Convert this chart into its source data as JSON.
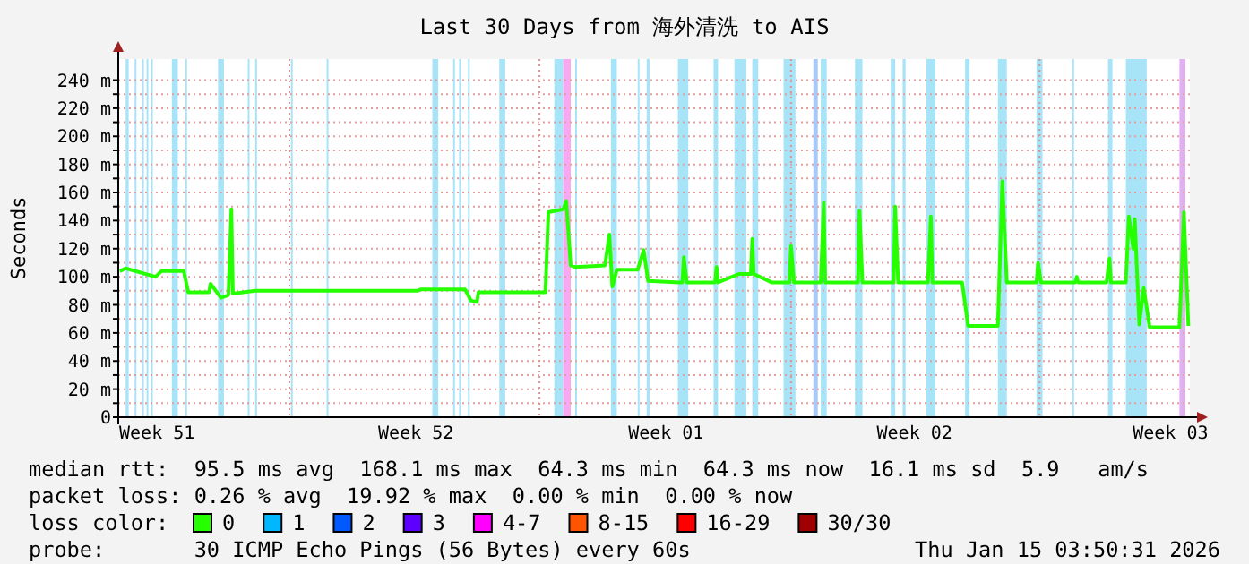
{
  "chart_data": {
    "type": "line",
    "title": "Last 30 Days from 海外清洗 to AIS",
    "ylabel": "Seconds",
    "legend_title": "loss color:",
    "legend": "bottom",
    "grid": "y",
    "xlim": [
      "2025-12-16T04:00",
      "2026-01-15T04:00"
    ],
    "xticks": [
      {
        "value": "2025-12-17T06:00",
        "label": "Week 51"
      },
      {
        "value": "2025-12-24T12:00",
        "label": "Week 52"
      },
      {
        "value": "2025-12-31T12:00",
        "label": "Week 01"
      },
      {
        "value": "2026-01-07T11:00",
        "label": "Week 02"
      },
      {
        "value": "2026-01-14T15:00",
        "label": "Week 03"
      }
    ],
    "ylim": [
      0,
      255
    ],
    "yticks": [
      0,
      {
        "value": 10,
        "label": null
      },
      {
        "value": 20,
        "label": "20 m"
      },
      {
        "value": 30,
        "label": null
      },
      {
        "value": 40,
        "label": "40 m"
      },
      {
        "value": 50,
        "label": null
      },
      {
        "value": 60,
        "label": "60 m"
      },
      {
        "value": 70,
        "label": null
      },
      {
        "value": 80,
        "label": "80 m"
      },
      {
        "value": 90,
        "label": null
      },
      {
        "value": 100,
        "label": "100 m"
      },
      {
        "value": 110,
        "label": null
      },
      {
        "value": 120,
        "label": "120 m"
      },
      {
        "value": 130,
        "label": null
      },
      {
        "value": 140,
        "label": "140 m"
      },
      {
        "value": 150,
        "label": null
      },
      {
        "value": 160,
        "label": "160 m"
      },
      {
        "value": 170,
        "label": null
      },
      {
        "value": 180,
        "label": "180 m"
      },
      {
        "value": 190,
        "label": null
      },
      {
        "value": 200,
        "label": "200 m"
      },
      {
        "value": 210,
        "label": null
      },
      {
        "value": 220,
        "label": "220 m"
      },
      {
        "value": 230,
        "label": null
      },
      {
        "value": 240,
        "label": "240 m"
      }
    ],
    "series": [
      {
        "name": "0",
        "color": "#26ff00",
        "x": [
          "2025-12-16T05:00",
          "2025-12-16T09:00",
          "2025-12-17T05:00",
          "2025-12-17T09:00",
          "2025-12-18T00:00",
          "2025-12-18T03:00",
          "2025-12-18T17:00",
          "2025-12-18T18:00",
          "2025-12-19T01:00",
          "2025-12-19T06:00",
          "2025-12-19T08:00",
          "2025-12-19T09:00",
          "2025-12-20T00:00",
          "2025-12-24T13:00",
          "2025-12-24T15:00",
          "2025-12-25T21:00",
          "2025-12-26T01:00",
          "2025-12-26T05:00",
          "2025-12-26T06:00",
          "2025-12-28T03:00",
          "2025-12-28T05:00",
          "2025-12-28T15:00",
          "2025-12-28T17:00",
          "2025-12-28T20:00",
          "2025-12-28T23:00",
          "2025-12-29T19:00",
          "2025-12-29T22:00",
          "2025-12-30T00:00",
          "2025-12-30T03:00",
          "2025-12-30T17:00",
          "2025-12-30T21:00",
          "2025-12-31T00:00",
          "2025-12-31T21:00",
          "2025-12-31T23:00",
          "2026-01-01T00:00",
          "2026-01-01T02:00",
          "2026-01-01T21:00",
          "2026-01-01T22:00",
          "2026-01-01T23:00",
          "2026-01-02T13:00",
          "2026-01-02T21:00",
          "2026-01-02T22:00",
          "2026-01-02T23:00",
          "2026-01-03T11:00",
          "2026-01-03T23:00",
          "2026-01-04T00:00",
          "2026-01-04T02:00",
          "2026-01-04T20:00",
          "2026-01-04T22:00",
          "2026-01-04T23:00",
          "2026-01-05T21:00",
          "2026-01-05T22:00",
          "2026-01-06T00:00",
          "2026-01-06T21:00",
          "2026-01-06T22:00",
          "2026-01-07T00:00",
          "2026-01-07T20:00",
          "2026-01-07T22:00",
          "2026-01-07T23:00",
          "2026-01-08T19:00",
          "2026-01-08T23:00",
          "2026-01-09T19:00",
          "2026-01-09T22:00",
          "2026-01-10T01:00",
          "2026-01-10T21:00",
          "2026-01-10T22:00",
          "2026-01-11T00:00",
          "2026-01-11T23:00",
          "2026-01-12T00:00",
          "2026-01-12T01:00",
          "2026-01-12T20:00",
          "2026-01-12T22:00",
          "2026-01-12T23:00",
          "2026-01-13T09:00",
          "2026-01-13T11:00",
          "2026-01-13T14:00",
          "2026-01-13T15:00",
          "2026-01-13T18:00",
          "2026-01-13T21:00",
          "2026-01-14T01:00",
          "2026-01-14T21:00",
          "2026-01-15T00:00",
          "2026-01-15T03:00"
        ],
        "values": [
          104,
          106,
          100,
          104,
          104,
          89,
          89,
          95,
          85,
          87,
          148,
          88,
          90,
          90,
          91,
          91,
          83,
          82,
          89,
          89,
          146,
          148,
          154,
          108,
          107,
          108,
          130,
          93,
          105,
          105,
          119,
          97,
          96,
          96,
          114,
          96,
          96,
          107,
          96,
          102,
          102,
          127,
          102,
          96,
          96,
          122,
          96,
          96,
          153,
          96,
          96,
          147,
          96,
          96,
          150,
          96,
          96,
          143,
          96,
          96,
          65,
          65,
          168,
          96,
          96,
          110,
          96,
          96,
          100,
          96,
          96,
          113,
          96,
          96,
          143,
          120,
          141,
          66,
          92,
          64,
          64,
          146,
          65
        ]
      },
      {
        "name": "1",
        "color": "#00b8ff"
      },
      {
        "name": "2",
        "color": "#0059ff"
      },
      {
        "name": "3",
        "color": "#5e00ff"
      },
      {
        "name": "4-7",
        "color": "#ff00ff"
      },
      {
        "name": "8-15",
        "color": "#ff5500"
      },
      {
        "name": "16-29",
        "color": "#ff0000"
      },
      {
        "name": "30/30",
        "color": "#a10000"
      }
    ],
    "ref_lines": [
      {
        "axis": "x",
        "value": "2025-12-20T23:00",
        "color": "#e09090",
        "line_style": "dotted"
      },
      {
        "axis": "x",
        "value": "2025-12-27T23:00",
        "color": "#e09090",
        "line_style": "dotted"
      },
      {
        "axis": "x",
        "value": "2026-01-04T00:00",
        "color": "#e09090",
        "line_style": "dotted"
      },
      {
        "axis": "x",
        "value": "2026-01-10T23:00",
        "color": "#e09090",
        "line_style": "dotted"
      }
    ],
    "bands": [
      {
        "axis": "x",
        "from": "2025-12-16T09:00",
        "to": "2025-12-16T11:00",
        "color": "#a8e4f8"
      },
      {
        "axis": "x",
        "from": "2025-12-16T15:00",
        "to": "2025-12-16T16:00",
        "color": "#a8e4f8"
      },
      {
        "axis": "x",
        "from": "2025-12-16T20:00",
        "to": "2025-12-16T21:00",
        "color": "#a8e4f8"
      },
      {
        "axis": "x",
        "from": "2025-12-16T23:00",
        "to": "2025-12-17T00:00",
        "color": "#a8e4f8"
      },
      {
        "axis": "x",
        "from": "2025-12-17T02:00",
        "to": "2025-12-17T03:00",
        "color": "#a8e4f8"
      },
      {
        "axis": "x",
        "from": "2025-12-17T16:00",
        "to": "2025-12-17T20:00",
        "color": "#a8e4f8"
      },
      {
        "axis": "x",
        "from": "2025-12-18T01:00",
        "to": "2025-12-18T02:00",
        "color": "#a8e4f8"
      },
      {
        "axis": "x",
        "from": "2025-12-18T23:00",
        "to": "2025-12-19T03:00",
        "color": "#a8e4f8"
      },
      {
        "axis": "x",
        "from": "2025-12-19T19:00",
        "to": "2025-12-19T20:00",
        "color": "#a8e4f8"
      },
      {
        "axis": "x",
        "from": "2025-12-20T00:00",
        "to": "2025-12-20T01:00",
        "color": "#a8e4f8"
      },
      {
        "axis": "x",
        "from": "2025-12-21T00:00",
        "to": "2025-12-21T01:00",
        "color": "#a8e4f8"
      },
      {
        "axis": "x",
        "from": "2025-12-22T00:00",
        "to": "2025-12-22T01:00",
        "color": "#a8e4f8"
      },
      {
        "axis": "x",
        "from": "2025-12-24T23:00",
        "to": "2025-12-25T03:00",
        "color": "#a8e4f8"
      },
      {
        "axis": "x",
        "from": "2025-12-25T13:00",
        "to": "2025-12-25T14:00",
        "color": "#a8e4f8"
      },
      {
        "axis": "x",
        "from": "2025-12-25T17:00",
        "to": "2025-12-25T18:00",
        "color": "#a8e4f8"
      },
      {
        "axis": "x",
        "from": "2025-12-25T23:00",
        "to": "2025-12-26T00:00",
        "color": "#a8e4f8"
      },
      {
        "axis": "x",
        "from": "2025-12-26T20:00",
        "to": "2025-12-27T00:00",
        "color": "#a8e4f8"
      },
      {
        "axis": "x",
        "from": "2025-12-28T09:00",
        "to": "2025-12-28T15:00",
        "color": "#a8e4f8"
      },
      {
        "axis": "x",
        "from": "2025-12-28T15:00",
        "to": "2025-12-28T20:00",
        "color": "#f8a8f0"
      },
      {
        "axis": "x",
        "from": "2025-12-28T23:00",
        "to": "2025-12-29T00:00",
        "color": "#a8e4f8"
      },
      {
        "axis": "x",
        "from": "2025-12-29T23:00",
        "to": "2025-12-30T03:00",
        "color": "#a8e4f8"
      },
      {
        "axis": "x",
        "from": "2025-12-30T17:00",
        "to": "2025-12-30T18:00",
        "color": "#a8e4f8"
      },
      {
        "axis": "x",
        "from": "2025-12-30T23:00",
        "to": "2025-12-31T01:00",
        "color": "#a8e4f8"
      },
      {
        "axis": "x",
        "from": "2025-12-31T20:00",
        "to": "2026-01-01T03:00",
        "color": "#a8e4f8"
      },
      {
        "axis": "x",
        "from": "2026-01-01T20:00",
        "to": "2026-01-01T23:00",
        "color": "#a8e4f8"
      },
      {
        "axis": "x",
        "from": "2026-01-02T10:00",
        "to": "2026-01-02T18:00",
        "color": "#a8e4f8"
      },
      {
        "axis": "x",
        "from": "2026-01-02T22:00",
        "to": "2026-01-03T02:00",
        "color": "#a8e4f8"
      },
      {
        "axis": "x",
        "from": "2026-01-03T19:00",
        "to": "2026-01-04T03:00",
        "color": "#a8e4f8"
      },
      {
        "axis": "x",
        "from": "2026-01-04T15:00",
        "to": "2026-01-04T18:00",
        "color": "#a8c8f8"
      },
      {
        "axis": "x",
        "from": "2026-01-04T20:00",
        "to": "2026-01-05T00:00",
        "color": "#a8e4f8"
      },
      {
        "axis": "x",
        "from": "2026-01-05T19:00",
        "to": "2026-01-06T00:00",
        "color": "#a8e4f8"
      },
      {
        "axis": "x",
        "from": "2026-01-06T19:00",
        "to": "2026-01-06T22:00",
        "color": "#a8e4f8"
      },
      {
        "axis": "x",
        "from": "2026-01-07T03:00",
        "to": "2026-01-07T05:00",
        "color": "#a8e4f8"
      },
      {
        "axis": "x",
        "from": "2026-01-07T19:00",
        "to": "2026-01-08T01:00",
        "color": "#a8e4f8"
      },
      {
        "axis": "x",
        "from": "2026-01-08T21:00",
        "to": "2026-01-09T00:00",
        "color": "#a8e4f8"
      },
      {
        "axis": "x",
        "from": "2026-01-09T19:00",
        "to": "2026-01-10T01:00",
        "color": "#a8e4f8"
      },
      {
        "axis": "x",
        "from": "2026-01-10T21:00",
        "to": "2026-01-11T01:00",
        "color": "#a8e4f8"
      },
      {
        "axis": "x",
        "from": "2026-01-11T21:00",
        "to": "2026-01-11T22:00",
        "color": "#a8e4f8"
      },
      {
        "axis": "x",
        "from": "2026-01-12T21:00",
        "to": "2026-01-13T00:00",
        "color": "#a8e4f8"
      },
      {
        "axis": "x",
        "from": "2026-01-13T09:00",
        "to": "2026-01-13T23:00",
        "color": "#a8e4f8"
      },
      {
        "axis": "x",
        "from": "2026-01-14T21:00",
        "to": "2026-01-15T01:00",
        "color": "#e0b0f0"
      }
    ],
    "annotations": [
      "median rtt:  95.5 ms avg  168.1 ms max  64.3 ms min  64.3 ms now  16.1 ms sd  5.9   am/s",
      "packet loss: 0.26 % avg  19.92 % max  0.00 % min  0.00 % now",
      "probe:       30 ICMP Echo Pings (56 Bytes) every 60s",
      "Thu Jan 15 03:50:31 2026"
    ]
  }
}
